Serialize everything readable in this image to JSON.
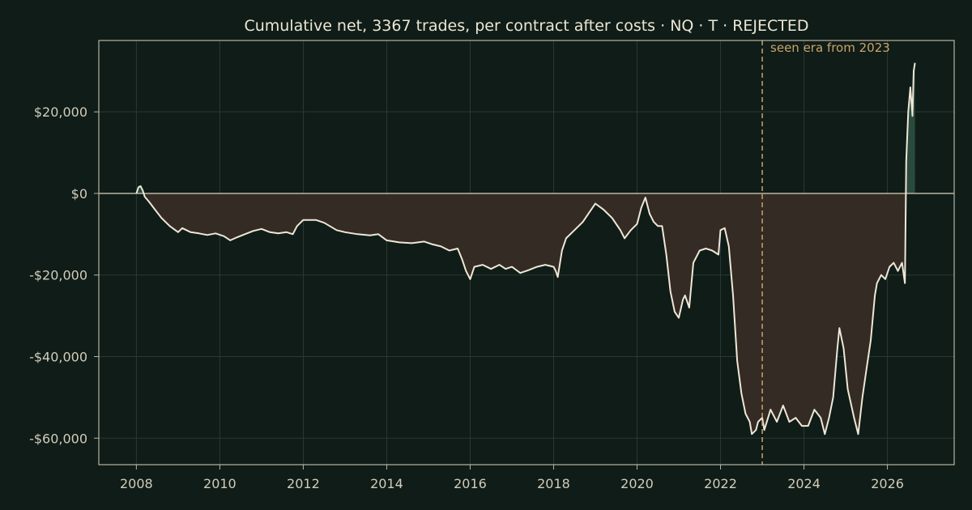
{
  "chart_data": {
    "type": "area",
    "title": "Cumulative net, 3367 trades, per contract after costs  ·  NQ · T · REJECTED",
    "xlabel": "",
    "ylabel": "",
    "xlim": [
      2007.1,
      2027.6
    ],
    "ylim": [
      -66500,
      37500
    ],
    "grid": true,
    "x_ticks": [
      2008,
      2010,
      2012,
      2014,
      2016,
      2018,
      2020,
      2022,
      2024,
      2026
    ],
    "x_tick_labels": [
      "2008",
      "2010",
      "2012",
      "2014",
      "2016",
      "2018",
      "2020",
      "2022",
      "2024",
      "2026"
    ],
    "y_ticks": [
      20000,
      0,
      -20000,
      -40000,
      -60000
    ],
    "y_tick_labels": [
      "$20,000",
      "$0",
      "-$20,000",
      "-$40,000",
      "-$60,000"
    ],
    "annotations": [
      {
        "type": "vline",
        "x": 2023.0,
        "label": "seen era from 2023",
        "color": "#c9a46a"
      }
    ],
    "colors": {
      "background": "#0f1c17",
      "line": "#efe7d6",
      "fill_negative": "#342b24",
      "fill_positive": "#2a4a3e",
      "zero_line": "#c8c2b0",
      "grid": "#2a3a33",
      "axes": "#b9b3a3"
    },
    "series": [
      {
        "x": [
          2008.0,
          2008.05,
          2008.1,
          2008.15,
          2008.2,
          2008.3,
          2008.45,
          2008.6,
          2008.8,
          2009.0,
          2009.1,
          2009.3,
          2009.5,
          2009.7,
          2009.9,
          2010.1,
          2010.25,
          2010.4,
          2010.6,
          2010.8,
          2011.0,
          2011.2,
          2011.4,
          2011.6,
          2011.75,
          2011.85,
          2012.0,
          2012.3,
          2012.5,
          2012.8,
          2013.0,
          2013.3,
          2013.6,
          2013.8,
          2014.0,
          2014.3,
          2014.6,
          2014.9,
          2015.1,
          2015.3,
          2015.5,
          2015.7,
          2015.8,
          2015.9,
          2016.0,
          2016.1,
          2016.3,
          2016.5,
          2016.7,
          2016.85,
          2017.0,
          2017.2,
          2017.4,
          2017.6,
          2017.8,
          2018.0,
          2018.05,
          2018.1,
          2018.2,
          2018.3,
          2018.5,
          2018.7,
          2018.9,
          2019.0,
          2019.2,
          2019.4,
          2019.6,
          2019.7,
          2019.85,
          2020.0,
          2020.1,
          2020.2,
          2020.3,
          2020.4,
          2020.5,
          2020.6,
          2020.7,
          2020.8,
          2020.9,
          2021.0,
          2021.1,
          2021.15,
          2021.25,
          2021.35,
          2021.5,
          2021.65,
          2021.8,
          2021.95,
          2022.0,
          2022.1,
          2022.2,
          2022.3,
          2022.4,
          2022.5,
          2022.6,
          2022.7,
          2022.75,
          2022.85,
          2022.9,
          2023.0,
          2023.05,
          2023.2,
          2023.35,
          2023.5,
          2023.65,
          2023.8,
          2023.95,
          2024.1,
          2024.25,
          2024.4,
          2024.5,
          2024.6,
          2024.7,
          2024.8,
          2024.85,
          2024.95,
          2025.05,
          2025.2,
          2025.3,
          2025.4,
          2025.5,
          2025.6,
          2025.7,
          2025.75,
          2025.85,
          2025.95,
          2026.05,
          2026.15,
          2026.25,
          2026.35,
          2026.42,
          2026.45,
          2026.5,
          2026.55,
          2026.6,
          2026.63,
          2026.66
        ],
        "values": [
          0,
          1500,
          1800,
          800,
          -800,
          -2000,
          -4000,
          -6000,
          -8000,
          -9500,
          -8500,
          -9500,
          -9800,
          -10200,
          -9800,
          -10500,
          -11500,
          -10800,
          -10000,
          -9200,
          -8700,
          -9500,
          -9800,
          -9500,
          -10000,
          -8000,
          -6500,
          -6500,
          -7200,
          -9000,
          -9500,
          -10000,
          -10300,
          -10000,
          -11500,
          -12000,
          -12200,
          -11800,
          -12500,
          -13000,
          -14000,
          -13500,
          -16000,
          -19000,
          -21000,
          -18000,
          -17500,
          -18500,
          -17500,
          -18500,
          -18000,
          -19500,
          -18800,
          -18000,
          -17500,
          -18000,
          -19000,
          -20500,
          -14000,
          -11000,
          -9000,
          -7000,
          -4000,
          -2500,
          -4000,
          -6000,
          -9000,
          -11000,
          -9000,
          -7500,
          -3500,
          -1000,
          -5000,
          -7000,
          -8000,
          -8000,
          -15000,
          -24000,
          -29000,
          -30500,
          -26000,
          -25000,
          -28000,
          -17000,
          -14000,
          -13500,
          -14000,
          -15000,
          -9000,
          -8500,
          -13000,
          -25000,
          -41000,
          -49000,
          -54000,
          -56000,
          -59000,
          -58000,
          -56000,
          -55000,
          -58000,
          -53000,
          -56000,
          -52000,
          -56000,
          -55000,
          -57000,
          -57000,
          -53000,
          -55000,
          -59000,
          -55000,
          -50000,
          -38000,
          -33000,
          -38000,
          -48000,
          -55000,
          -59000,
          -50000,
          -43000,
          -36000,
          -25000,
          -22000,
          -20000,
          -21000,
          -18000,
          -17000,
          -19000,
          -17000,
          -22000,
          8000,
          20000,
          26000,
          19000,
          30000,
          32000
        ]
      }
    ]
  }
}
